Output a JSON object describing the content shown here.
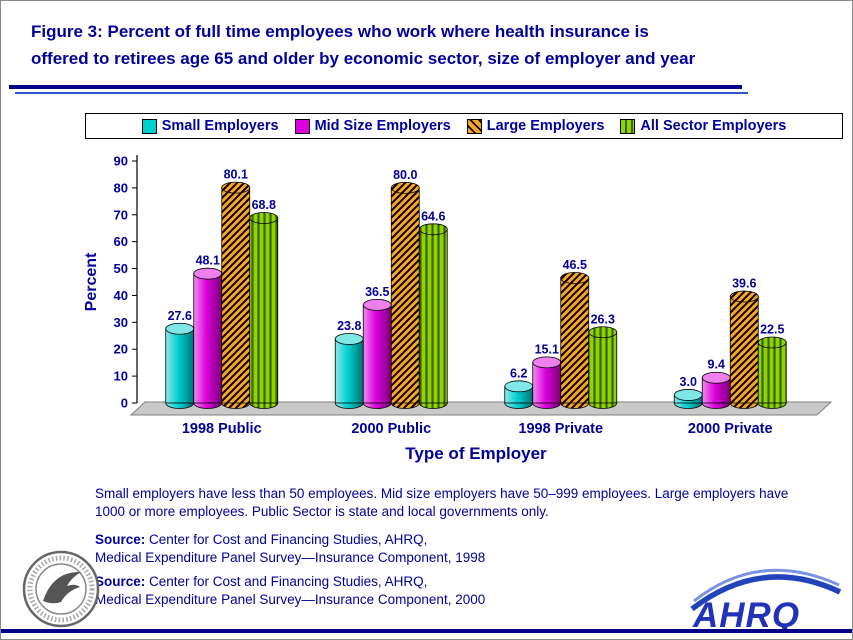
{
  "page": {
    "title_line1": "Figure 3: Percent of full time employees who work where health insurance is",
    "title_line2": "offered to retirees age 65 and older by economic sector, size of employer and year"
  },
  "notes": {
    "definition": "Small employers have less than 50 employees. Mid size employers have 50–999 employees. Large employers have 1000 or more employees. Public Sector is state and local governments only.",
    "sources": [
      {
        "label": "Source:",
        "line1": " Center for Cost and Financing Studies, AHRQ,",
        "line2": "Medical Expenditure Panel Survey—Insurance Component, 1998"
      },
      {
        "label": "Source:",
        "line1": " Center for Cost and Financing Studies, AHRQ,",
        "line2": "Medical Expenditure Panel Survey—Insurance Component, 2000"
      }
    ]
  },
  "logos": {
    "ahrq_text": "AHRQ"
  },
  "colors": {
    "navy": "#00009C",
    "rule": "#00008B"
  },
  "chart_data": {
    "type": "bar",
    "title": "",
    "categories": [
      "1998 Public",
      "2000 Public",
      "1998 Private",
      "2000 Private"
    ],
    "series": [
      {
        "name": "Small Employers",
        "color": "#00CFCF",
        "pattern": "solid",
        "values": [
          27.6,
          23.8,
          6.2,
          3.0
        ]
      },
      {
        "name": "Mid Size Employers",
        "color": "#DD00DD",
        "pattern": "solid",
        "values": [
          48.1,
          36.5,
          15.1,
          9.4
        ]
      },
      {
        "name": "Large Employers",
        "color": "#FFA520",
        "pattern": "diagonal-hatch",
        "values": [
          80.1,
          80.0,
          46.5,
          39.6
        ]
      },
      {
        "name": "All Sector Employers",
        "color": "#8CD600",
        "pattern": "vertical-stripes",
        "values": [
          68.8,
          64.6,
          26.3,
          22.5
        ]
      }
    ],
    "xlabel": "Type of Employer",
    "ylabel": "Percent",
    "ylim": [
      0,
      90
    ],
    "ytick_step": 10,
    "legend_position": "top",
    "grid": false
  }
}
